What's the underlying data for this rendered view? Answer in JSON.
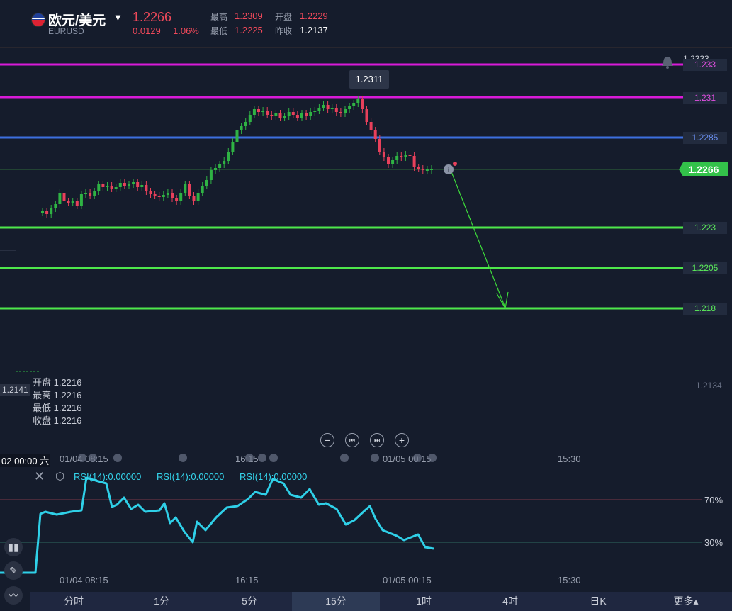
{
  "header": {
    "title": "欧元/美元",
    "symbol": "EURUSD",
    "price": "1.2266",
    "change": "0.0129",
    "change_pct": "1.06%",
    "high_label": "最高",
    "high": "1.2309",
    "open_label": "开盘",
    "open": "1.2229",
    "low_label": "最低",
    "low": "1.2225",
    "prev_close_label": "昨收",
    "prev_close": "1.2137"
  },
  "price_axis": {
    "top_hidden": "1.2333",
    "line_233": "1.233",
    "line_231": "1.231",
    "line_2285": "1.2285",
    "current": "1.2266",
    "line_223": "1.223",
    "line_2205": "1.2205",
    "line_218": "1.218",
    "low_axis": "1.2134",
    "left_axis": "1.2141"
  },
  "high_marker": "1.2311",
  "ohlc_panel": {
    "open": "开盘 1.2216",
    "high": "最高 1.2216",
    "low": "最低 1.2216",
    "close": "收盘 1.2216"
  },
  "time_axis": {
    "cursor": "02 00:00 六",
    "t1": "01/04 08:15",
    "t2": "16:15",
    "t3": "01/05 00:15",
    "t4": "15:30"
  },
  "rsi": {
    "label1": "RSI(14):0.00000",
    "label2": "RSI(14):0.00000",
    "label3": "RSI(14):0.00000",
    "level_high": "70%",
    "level_low": "30%"
  },
  "controls": {
    "zoom_out": "−",
    "prev": "⏮",
    "next": "⏭",
    "zoom_in": "+"
  },
  "tabs": [
    "分时",
    "1分",
    "5分",
    "15分",
    "1时",
    "4时",
    "日K",
    "更多▴"
  ],
  "active_tab": "15分",
  "colors": {
    "bull": "#2fb344",
    "bear": "#e8405b",
    "magenta": "#d81ad8",
    "blue": "#3d6fe0",
    "green": "#4ee74b",
    "rsi": "#2fd0e8"
  }
}
